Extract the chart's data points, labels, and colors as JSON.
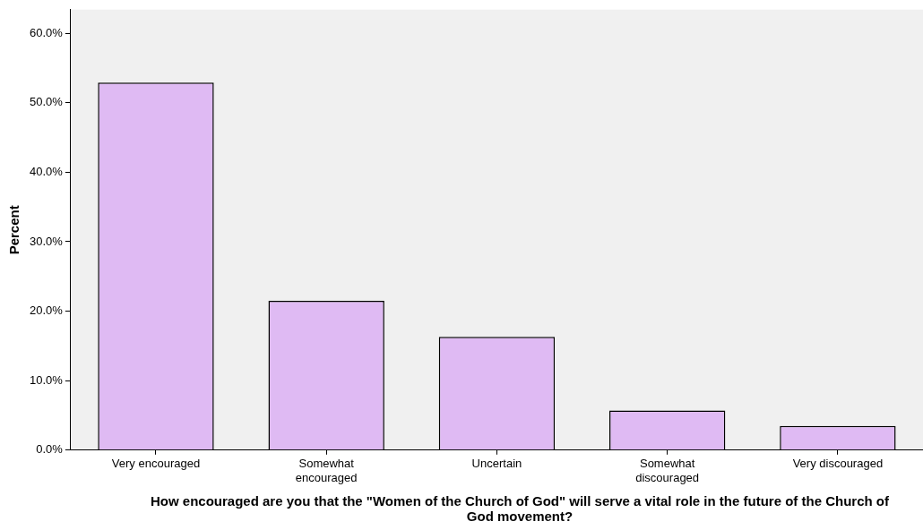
{
  "chart_data": {
    "type": "bar",
    "xlabel": "How encouraged are you that the \"Women of the Church of God\" will serve a vital role in the future of the Church of God movement?",
    "ylabel": "Percent",
    "categories": [
      "Very encouraged",
      "Somewhat encouraged",
      "Uncertain",
      "Somewhat discouraged",
      "Very discouraged"
    ],
    "values": [
      52.9,
      21.5,
      16.3,
      5.7,
      3.5
    ],
    "color": "#dfbaf3",
    "ylim": [
      0,
      63.4
    ],
    "yticks": [
      {
        "value": 0,
        "label": "0.0%"
      },
      {
        "value": 10,
        "label": "10.0%"
      },
      {
        "value": 20,
        "label": "20.0%"
      },
      {
        "value": 30,
        "label": "30.0%"
      },
      {
        "value": 40,
        "label": "40.0%"
      },
      {
        "value": 50,
        "label": "50.0%"
      },
      {
        "value": 60,
        "label": "60.0%"
      }
    ],
    "grid": false,
    "legend": false
  }
}
